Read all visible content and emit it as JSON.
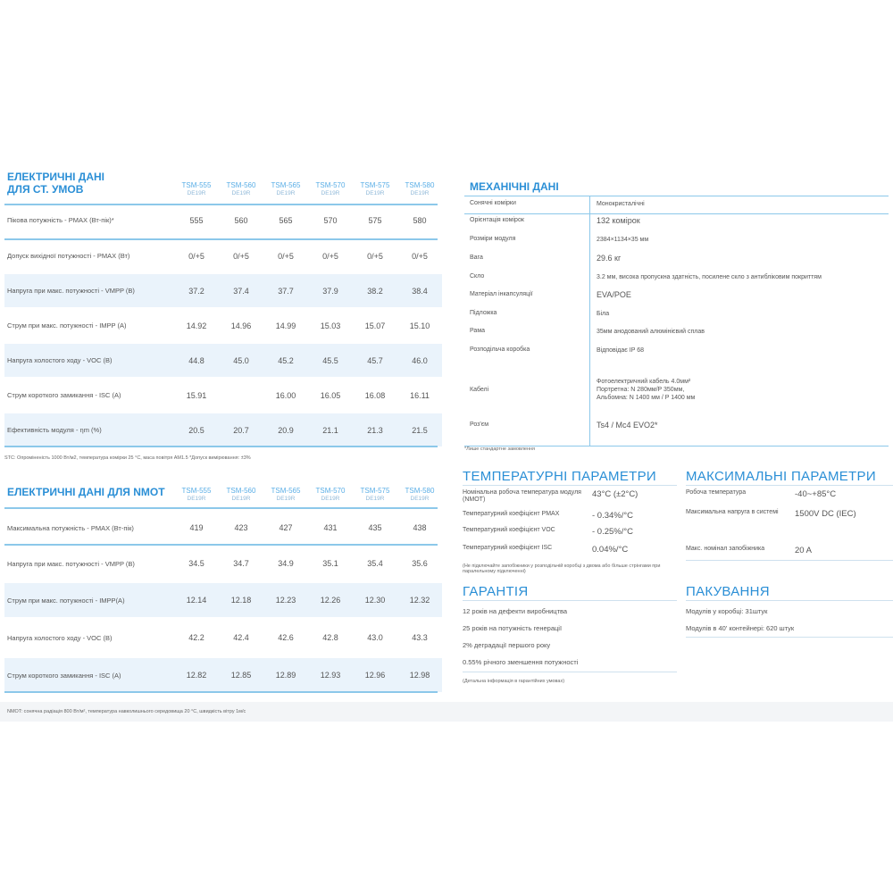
{
  "models": [
    [
      "TSM-555",
      "DE19R"
    ],
    [
      "TSM-560",
      "DE19R"
    ],
    [
      "TSM-565",
      "DE19R"
    ],
    [
      "TSM-570",
      "DE19R"
    ],
    [
      "TSM-575",
      "DE19R"
    ],
    [
      "TSM-580",
      "DE19R"
    ]
  ],
  "stc": {
    "title1": "ЕЛЕКТРИЧНІ ДАНІ",
    "title2": "ДЛЯ СТ. УМОВ",
    "rows": [
      {
        "label": "Пікова потужність - PMAX (Вт-пік)*",
        "values": [
          "555",
          "560",
          "565",
          "570",
          "575",
          "580"
        ]
      },
      {
        "label": "Допуск вихідної потужності - PMAX (Вт)",
        "values": [
          "0/+5",
          "0/+5",
          "0/+5",
          "0/+5",
          "0/+5",
          "0/+5"
        ]
      },
      {
        "label": "Напруга при макс. потужності - VMPP (В)",
        "values": [
          "37.2",
          "37.4",
          "37.7",
          "37.9",
          "38.2",
          "38.4"
        ]
      },
      {
        "label": "Струм при макс. потужності - IMPP (А)",
        "values": [
          "14.92",
          "14.96",
          "14.99",
          "15.03",
          "15.07",
          "15.10"
        ]
      },
      {
        "label": "Напруга холостого ходу - VOC (В)",
        "values": [
          "44.8",
          "45.0",
          "45.2",
          "45.5",
          "45.7",
          "46.0"
        ]
      },
      {
        "label": "Струм короткого замикання - ISC (А)",
        "values": [
          "15.91",
          "",
          "16.00",
          "16.05",
          "16.08",
          "16.11"
        ]
      },
      {
        "label": "Ефективність модуля - ηm (%)",
        "values": [
          "20.5",
          "20.7",
          "20.9",
          "21.1",
          "21.3",
          "21.5"
        ]
      }
    ],
    "note": "STC: Опроміненість 1000 Вт/м2, температура комірки 25 °C, маса повітря AM1.5 *Допуск вимірювання: ±3%"
  },
  "nmot": {
    "title": "ЕЛЕКТРИЧНІ ДАНІ ДЛЯ NMOT",
    "rows": [
      {
        "label": "Максимальна потужність - PMAX (Вт-пік)",
        "values": [
          "419",
          "423",
          "427",
          "431",
          "435",
          "438"
        ]
      },
      {
        "label": "Напруга при макс. потужності - VMPP (В)",
        "values": [
          "34.5",
          "34.7",
          "34.9",
          "35.1",
          "35.4",
          "35.6"
        ]
      },
      {
        "label": "Струм при макс. потужності - IMPP(А)",
        "values": [
          "12.14",
          "12.18",
          "12.23",
          "12.26",
          "12.30",
          "12.32"
        ]
      },
      {
        "label": "Напруга холостого ходу - VOC (В)",
        "values": [
          "42.2",
          "42.4",
          "42.6",
          "42.8",
          "43.0",
          "43.3"
        ]
      },
      {
        "label": "Струм короткого замикання - ISC (А)",
        "values": [
          "12.82",
          "12.85",
          "12.89",
          "12.93",
          "12.96",
          "12.98"
        ]
      }
    ],
    "note": "NMOT: сонячна радіація 800 Вт/м², температура навколишнього середовища 20 °C, швидкість вітру 1м/с"
  },
  "mech": {
    "title": "МЕХАНІЧНІ ДАНІ",
    "rows": [
      {
        "k": "Сонячні комірки",
        "v": "Монокристалічні"
      },
      {
        "k": "Орієнтація комірок",
        "v": "132 комірок"
      },
      {
        "k": "Розміри модуля",
        "v": "2384×1134×35 мм"
      },
      {
        "k": "Вага",
        "v": "29.6 кг"
      },
      {
        "k": "Скло",
        "v": "3.2 мм, висока пропускна здатність, посилене скло з антибліковим покриттям"
      },
      {
        "k": "Матеріал інкапсуляції",
        "v": "EVA/POE"
      },
      {
        "k": "Підложка",
        "v": "Біла"
      },
      {
        "k": "Рама",
        "v": "35мм анодований алюмінієвий сплав"
      },
      {
        "k": "Розподільча коробка",
        "v": "Відповідає IP 68"
      },
      {
        "k": "Кабелі",
        "v": "Фотоелектричний кабель 4.0мм²\nПортретна: N 280мм/P 350мм,\nАльбомна: N 1400 мм / P 1400 мм"
      },
      {
        "k": "Роз'єм",
        "v": "Ts4 / Mc4 EVO2*"
      }
    ],
    "note": "*Лише стандартне замовлення"
  },
  "temp": {
    "title": "ТЕМПЕРАТУРНІ ПАРАМЕТРИ",
    "rows": [
      {
        "k": "Номінальна робоча температура модуля (NMOT)",
        "v": "43°C (±2°C)"
      },
      {
        "k": "Температурний коефіцієнт PMAX",
        "v": "- 0.34%/°C"
      },
      {
        "k": "Температурний коефіцієнт VOC",
        "v": "- 0.25%/°C"
      },
      {
        "k": "Температурний коефіцієнт ISC",
        "v": "0.04%/°C"
      }
    ],
    "note": "(Не підключайте запобіжники у розподільчій коробці з двома або більше стрінгами при паралельному підключенні)"
  },
  "max": {
    "title": "МАКСИМАЛЬНІ ПАРАМЕТРИ",
    "rows": [
      {
        "k": "Робоча температура",
        "v": "-40~+85°C"
      },
      {
        "k": "Максимальна напруга в системі",
        "v": "1500V DC (IEC)"
      },
      {
        "k": "Макс. номінал запобіжника",
        "v": "20 A"
      }
    ]
  },
  "warranty": {
    "title": "ГАРАНТІЯ",
    "items": [
      "12 років на дефекти виробництва",
      "25 років на потужність генерації",
      "2% деградації першого року",
      "0.55% річного зменшення потужності"
    ],
    "note": "(Детальна інформація в гарантійних умовах)"
  },
  "pack": {
    "title": "ПАКУВАННЯ",
    "items": [
      "Модулів у коробці: 31штук",
      "Модулів в 40' контейнері: 620 штук"
    ]
  }
}
